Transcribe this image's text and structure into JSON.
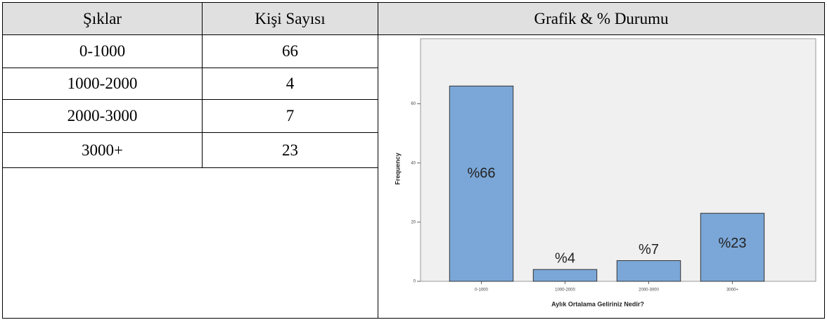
{
  "table": {
    "header": [
      "Şıklar",
      "Kişi Sayısı",
      "Grafik & % Durumu"
    ],
    "rows": [
      [
        "0-1000",
        66
      ],
      [
        "1000-2000",
        4
      ],
      [
        "2000-3000",
        7
      ],
      [
        "3000+",
        23
      ]
    ]
  },
  "chart_data": {
    "type": "bar",
    "categories": [
      "0-1000",
      "1000-2000",
      "2000-3000",
      "3000+"
    ],
    "values": [
      66,
      4,
      7,
      23
    ],
    "value_labels": [
      "%66",
      "%4",
      "%7",
      "%23"
    ],
    "xlabel": "Aylık Ortalama Geliriniz Nedir?",
    "ylabel": "Frequency",
    "color": "#7ba7d8",
    "ylim": [
      0,
      82
    ],
    "yticks": [
      0,
      20,
      40,
      60
    ]
  }
}
